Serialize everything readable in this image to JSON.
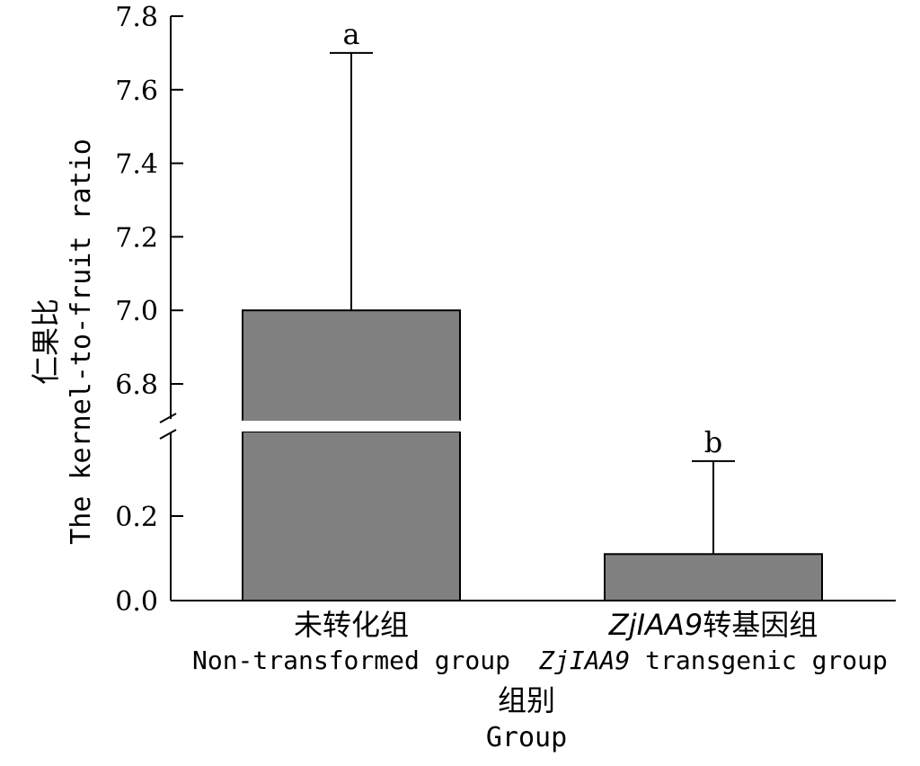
{
  "chart_data": {
    "type": "bar",
    "categories": [
      {
        "zh_prefix": "",
        "zh": "未转化组",
        "en_prefix": "",
        "en": "Non-transformed group"
      },
      {
        "zh_prefix": "ZjIAA9",
        "zh": "转基因组",
        "en_prefix": "ZjIAA9",
        "en": " transgenic group"
      }
    ],
    "values": [
      7.0,
      0.11
    ],
    "error_upper": [
      7.7,
      0.33
    ],
    "significance": [
      "a",
      "b"
    ],
    "y_lower_ticks": [
      "0.0",
      "0.2"
    ],
    "y_upper_ticks": [
      "6.8",
      "7.0",
      "7.2",
      "7.4",
      "7.6",
      "7.8"
    ],
    "y_lower_range": [
      0,
      0.35
    ],
    "y_upper_range": [
      6.65,
      7.8
    ],
    "axis_break": true,
    "bar_color": "#808080",
    "ylabel_zh": "仁果比",
    "ylabel_en": "The kernel-to-fruit ratio",
    "xlabel_zh": "组别",
    "xlabel_en": "Group"
  }
}
